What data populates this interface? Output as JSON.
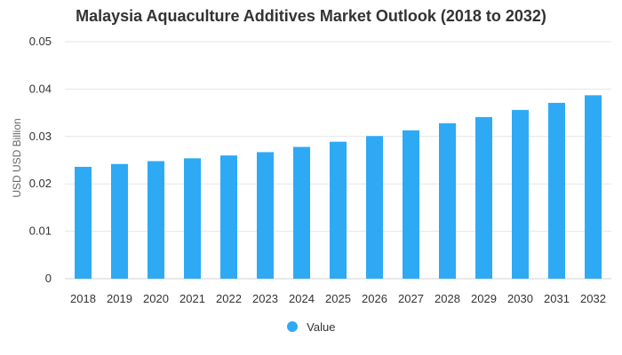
{
  "chart_data": {
    "type": "bar",
    "title": "Malaysia Aquaculture Additives Market Outlook (2018 to 2032)",
    "xlabel": "",
    "ylabel": "USD USD Billion",
    "ylim": [
      0,
      0.05
    ],
    "yticks": [
      "0",
      "0.01",
      "0.02",
      "0.03",
      "0.04",
      "0.05"
    ],
    "grid": true,
    "legend_position": "bottom-center",
    "categories": [
      "2018",
      "2019",
      "2020",
      "2021",
      "2022",
      "2023",
      "2024",
      "2025",
      "2026",
      "2027",
      "2028",
      "2029",
      "2030",
      "2031",
      "2032"
    ],
    "series": [
      {
        "name": "Value",
        "color": "#2eaaf5",
        "values": [
          0.0236,
          0.0242,
          0.0248,
          0.0254,
          0.026,
          0.0267,
          0.0278,
          0.0289,
          0.0301,
          0.0313,
          0.0328,
          0.0341,
          0.0356,
          0.0371,
          0.0387
        ]
      }
    ]
  }
}
